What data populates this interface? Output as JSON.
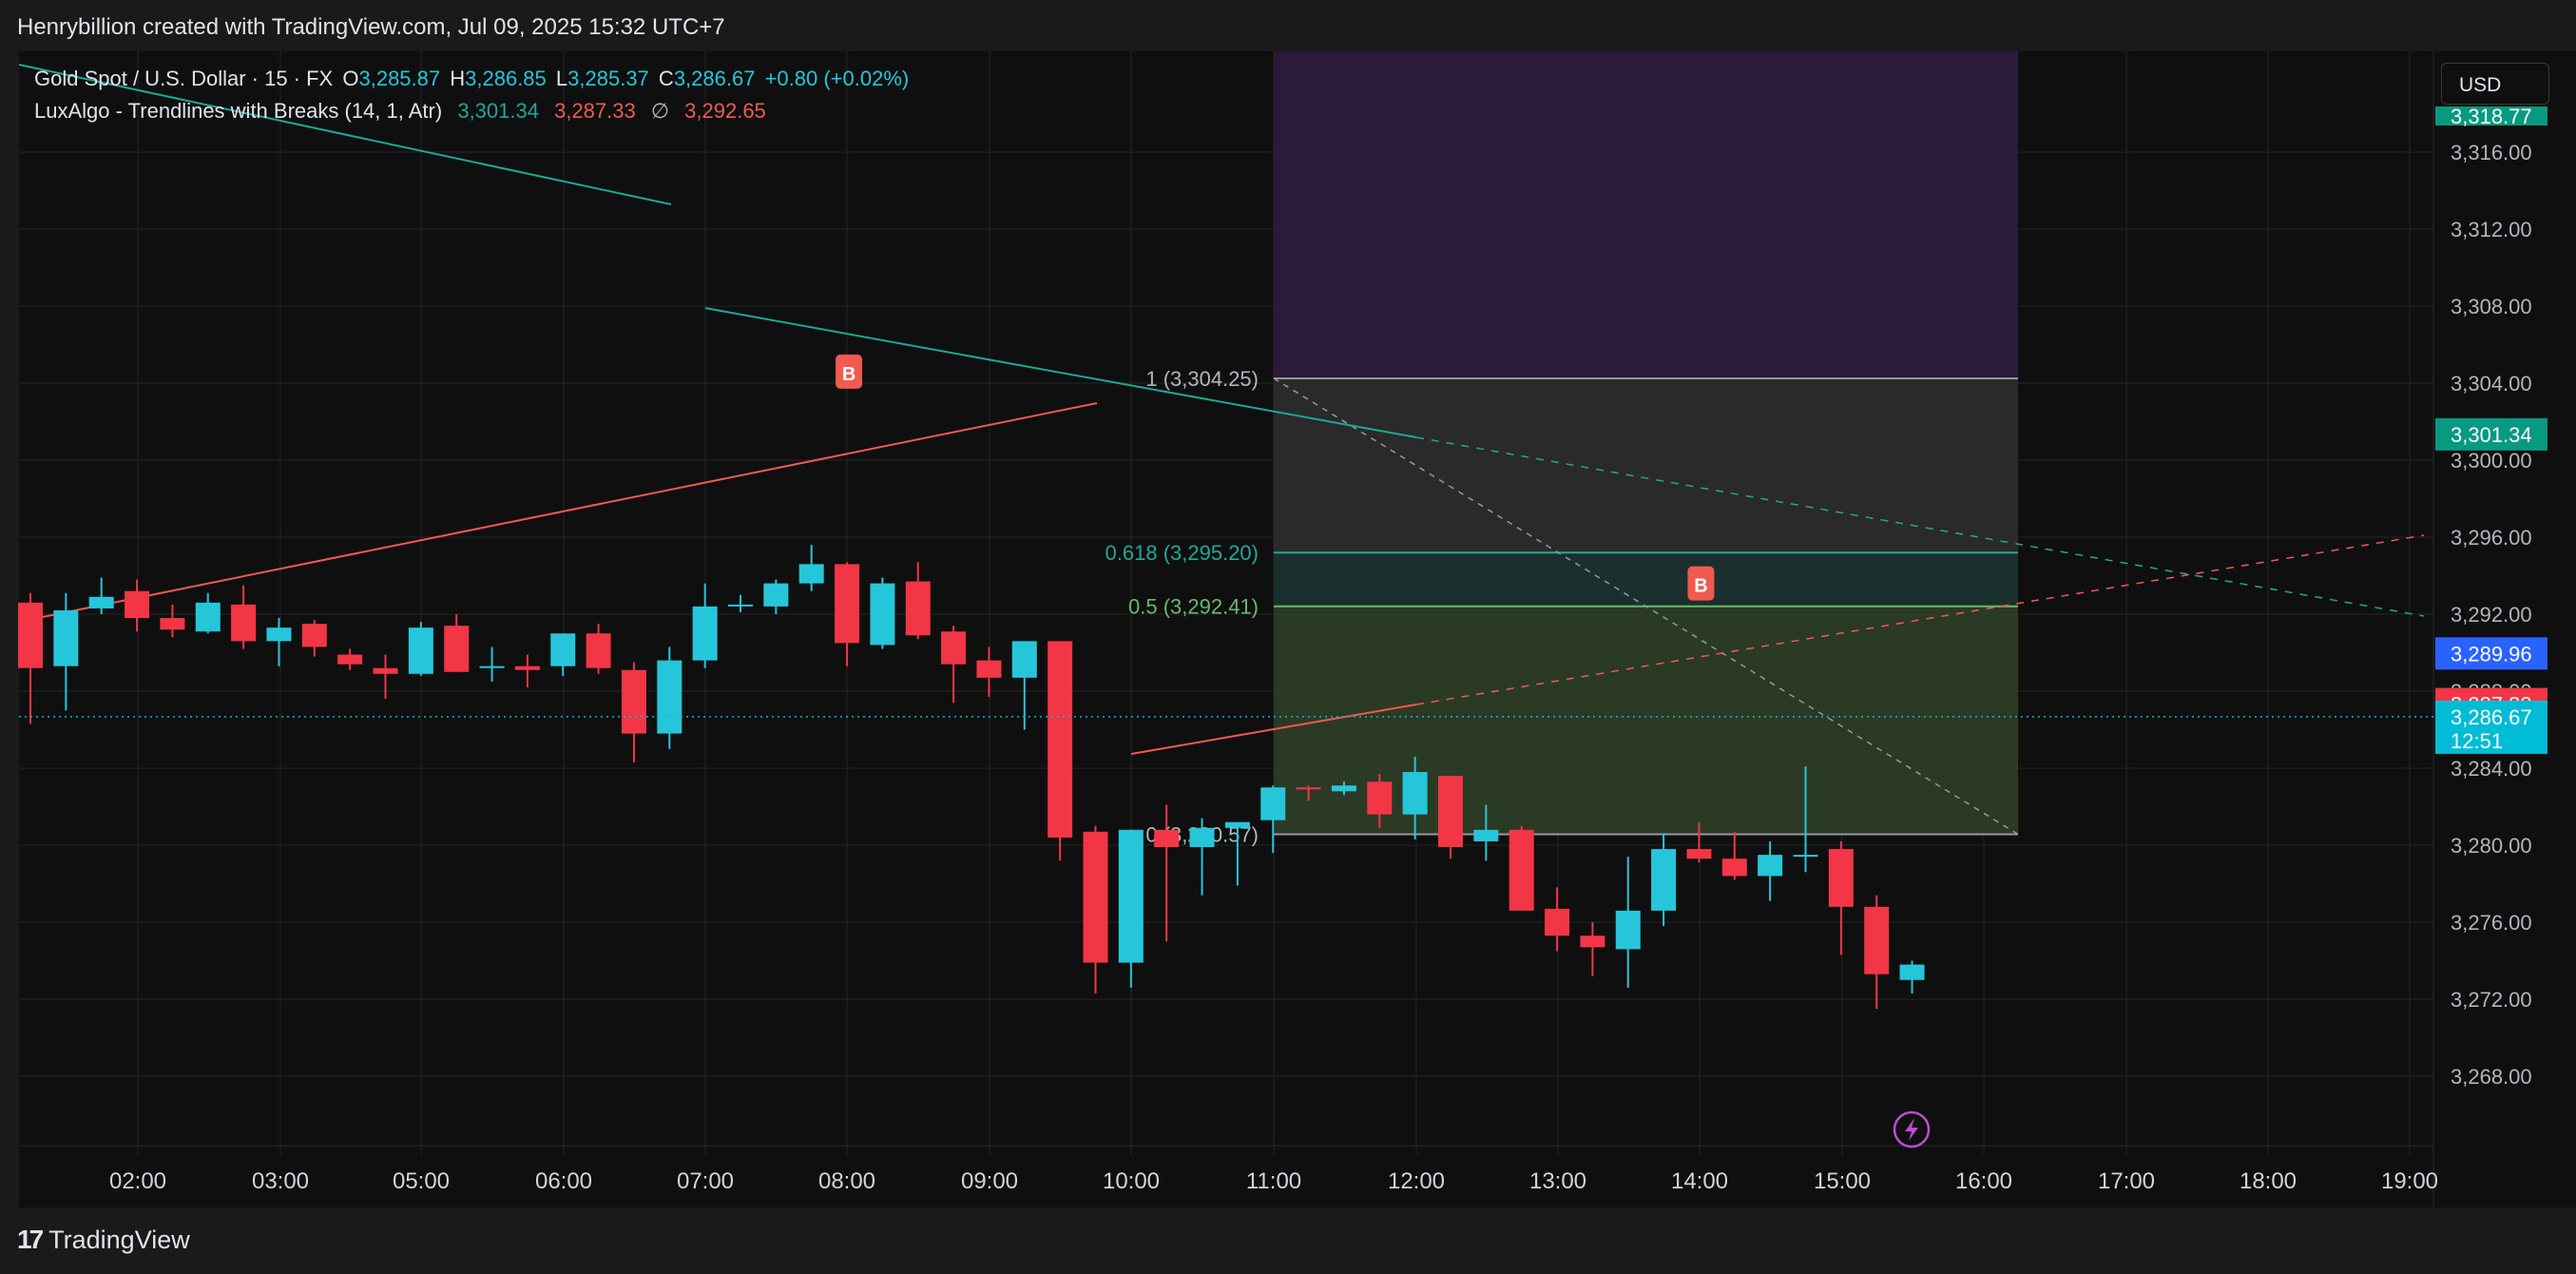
{
  "header": {
    "attribution": "Henrybillion created with TradingView.com, Jul 09, 2025 15:32 UTC+7"
  },
  "footer": {
    "brand_logo": "17",
    "brand_name": "TradingView"
  },
  "symbol_legend": {
    "symbol": "Gold Spot / U.S. Dollar · 15 · FX",
    "open_label": "O",
    "open": "3,285.87",
    "high_label": "H",
    "high": "3,286.85",
    "low_label": "L",
    "low": "3,285.37",
    "close_label": "C",
    "close": "3,286.67",
    "change": "+0.80 (+0.02%)"
  },
  "indicator_legend": {
    "name": "LuxAlgo - Trendlines with Breaks (14, 1, Atr)",
    "v1": "3,301.34",
    "v2": "3,287.33",
    "symbol": "∅",
    "v3": "3,292.65"
  },
  "currency_button": "USD",
  "colors": {
    "up": "#26c6da",
    "down": "#f23645",
    "bg": "#0f0f0f",
    "grid": "#242424",
    "text": "#b2b5be",
    "fib_green": "#2b3a24",
    "fib_gray": "#3a3a3a",
    "fib_purple": "#2c1a3a",
    "teal_line": "#1fa896",
    "red_line": "#f05a4f"
  },
  "chart_data": {
    "type": "candlestick",
    "price_axis": {
      "range": [
        3264.5,
        3322
      ],
      "ticks": [
        "3,316.00",
        "3,312.00",
        "3,308.00",
        "3,304.00",
        "3,300.00",
        "3,296.00",
        "3,292.00",
        "3,288.00",
        "3,284.00",
        "3,280.00",
        "3,276.00",
        "3,272.00",
        "3,268.00"
      ],
      "partial_top_label": "3,318.77"
    },
    "time_axis": {
      "ticks": [
        {
          "label": "02:00",
          "hour": 2
        },
        {
          "label": "03:00",
          "hour": 3
        },
        {
          "label": "05:00",
          "hour": 5
        },
        {
          "label": "06:00",
          "hour": 6
        },
        {
          "label": "07:00",
          "hour": 7
        },
        {
          "label": "08:00",
          "hour": 8
        },
        {
          "label": "09:00",
          "hour": 9
        },
        {
          "label": "10:00",
          "hour": 10
        },
        {
          "label": "11:00",
          "hour": 11
        },
        {
          "label": "12:00",
          "hour": 12
        },
        {
          "label": "13:00",
          "hour": 13
        },
        {
          "label": "14:00",
          "hour": 14
        },
        {
          "label": "15:00",
          "hour": 15
        },
        {
          "label": "16:00",
          "hour": 16
        },
        {
          "label": "17:00",
          "hour": 17
        },
        {
          "label": "18:00",
          "hour": 18
        },
        {
          "label": "19:00",
          "hour": 19
        }
      ]
    },
    "candles": [
      {
        "t": 1.25,
        "o": 3292.6,
        "h": 3293.1,
        "l": 3286.3,
        "c": 3289.2
      },
      {
        "t": 1.5,
        "o": 3289.3,
        "h": 3293.1,
        "l": 3287.0,
        "c": 3292.2
      },
      {
        "t": 1.75,
        "o": 3292.3,
        "h": 3293.9,
        "l": 3292.0,
        "c": 3292.9
      },
      {
        "t": 2.0,
        "o": 3293.2,
        "h": 3293.8,
        "l": 3291.1,
        "c": 3291.8
      },
      {
        "t": 2.25,
        "o": 3291.8,
        "h": 3292.5,
        "l": 3290.8,
        "c": 3291.2
      },
      {
        "t": 2.5,
        "o": 3291.1,
        "h": 3293.1,
        "l": 3291.0,
        "c": 3292.6
      },
      {
        "t": 2.75,
        "o": 3292.5,
        "h": 3293.5,
        "l": 3290.2,
        "c": 3290.6
      },
      {
        "t": 3.0,
        "o": 3290.6,
        "h": 3291.8,
        "l": 3289.3,
        "c": 3291.3
      },
      {
        "t": 3.25,
        "o": 3291.5,
        "h": 3291.7,
        "l": 3289.8,
        "c": 3290.3
      },
      {
        "t": 3.5,
        "o": 3289.9,
        "h": 3290.2,
        "l": 3289.1,
        "c": 3289.4
      },
      {
        "t": 3.75,
        "o": 3289.2,
        "h": 3289.9,
        "l": 3287.6,
        "c": 3288.9
      },
      {
        "t": 4.0,
        "o": 3288.9,
        "h": 3291.6,
        "l": 3288.8,
        "c": 3291.3
      },
      {
        "t": 4.25,
        "o": 3291.4,
        "h": 3292.0,
        "l": 3289.0,
        "c": 3289.0
      },
      {
        "t": 4.5,
        "o": 3289.3,
        "h": 3290.3,
        "l": 3288.5,
        "c": 3289.3
      },
      {
        "t": 4.75,
        "o": 3289.3,
        "h": 3289.9,
        "l": 3288.2,
        "c": 3289.1
      },
      {
        "t": 5.0,
        "o": 3289.3,
        "h": 3291.0,
        "l": 3288.8,
        "c": 3291.0
      },
      {
        "t": 5.25,
        "o": 3291.0,
        "h": 3291.5,
        "l": 3288.9,
        "c": 3289.2
      },
      {
        "t": 5.5,
        "o": 3289.1,
        "h": 3289.5,
        "l": 3284.3,
        "c": 3285.8
      },
      {
        "t": 5.75,
        "o": 3285.8,
        "h": 3290.3,
        "l": 3285.0,
        "c": 3289.6
      },
      {
        "t": 6.0,
        "o": 3289.6,
        "h": 3293.6,
        "l": 3289.2,
        "c": 3292.4
      },
      {
        "t": 6.25,
        "o": 3292.5,
        "h": 3293.0,
        "l": 3292.1,
        "c": 3292.5
      },
      {
        "t": 6.5,
        "o": 3292.4,
        "h": 3293.8,
        "l": 3292.0,
        "c": 3293.6
      },
      {
        "t": 6.75,
        "o": 3293.6,
        "h": 3295.6,
        "l": 3293.2,
        "c": 3294.6
      },
      {
        "t": 7.0,
        "o": 3294.6,
        "h": 3294.7,
        "l": 3289.3,
        "c": 3290.5
      },
      {
        "t": 7.25,
        "o": 3290.4,
        "h": 3293.9,
        "l": 3290.2,
        "c": 3293.6
      },
      {
        "t": 7.5,
        "o": 3293.7,
        "h": 3294.7,
        "l": 3290.7,
        "c": 3290.9
      },
      {
        "t": 7.75,
        "o": 3291.1,
        "h": 3291.4,
        "l": 3287.4,
        "c": 3289.4
      },
      {
        "t": 8.0,
        "o": 3289.6,
        "h": 3290.3,
        "l": 3287.7,
        "c": 3288.7
      },
      {
        "t": 8.25,
        "o": 3288.7,
        "h": 3290.6,
        "l": 3286.0,
        "c": 3290.6
      },
      {
        "t": 8.5,
        "o": 3290.6,
        "h": 3290.6,
        "l": 3279.2,
        "c": 3280.4
      },
      {
        "t": 8.75,
        "o": 3280.7,
        "h": 3281.0,
        "l": 3272.3,
        "c": 3273.9
      },
      {
        "t": 9.0,
        "o": 3273.9,
        "h": 3280.8,
        "l": 3272.6,
        "c": 3280.8
      },
      {
        "t": 9.25,
        "o": 3280.8,
        "h": 3282.1,
        "l": 3275.0,
        "c": 3279.9
      },
      {
        "t": 9.5,
        "o": 3279.9,
        "h": 3281.4,
        "l": 3277.4,
        "c": 3280.9
      },
      {
        "t": 9.75,
        "o": 3280.9,
        "h": 3281.2,
        "l": 3277.9,
        "c": 3281.2
      },
      {
        "t": 10.0,
        "o": 3281.3,
        "h": 3283.1,
        "l": 3279.6,
        "c": 3283.0
      },
      {
        "t": 10.25,
        "o": 3283.0,
        "h": 3283.1,
        "l": 3282.3,
        "c": 3282.9
      },
      {
        "t": 10.5,
        "o": 3282.8,
        "h": 3283.3,
        "l": 3282.6,
        "c": 3283.1
      },
      {
        "t": 10.75,
        "o": 3283.3,
        "h": 3283.7,
        "l": 3280.9,
        "c": 3281.6
      },
      {
        "t": 11.0,
        "o": 3281.6,
        "h": 3284.6,
        "l": 3280.3,
        "c": 3283.8
      },
      {
        "t": 11.25,
        "o": 3283.6,
        "h": 3283.6,
        "l": 3279.3,
        "c": 3279.9
      },
      {
        "t": 11.5,
        "o": 3280.2,
        "h": 3282.1,
        "l": 3279.2,
        "c": 3280.8
      },
      {
        "t": 11.75,
        "o": 3280.8,
        "h": 3281.0,
        "l": 3276.6,
        "c": 3276.6
      },
      {
        "t": 12.0,
        "o": 3276.7,
        "h": 3277.8,
        "l": 3274.5,
        "c": 3275.3
      },
      {
        "t": 12.25,
        "o": 3275.3,
        "h": 3276.0,
        "l": 3273.2,
        "c": 3274.7
      },
      {
        "t": 12.5,
        "o": 3274.6,
        "h": 3279.4,
        "l": 3272.6,
        "c": 3276.6
      },
      {
        "t": 12.75,
        "o": 3276.6,
        "h": 3280.6,
        "l": 3275.8,
        "c": 3279.8
      },
      {
        "t": 13.0,
        "o": 3279.8,
        "h": 3281.2,
        "l": 3279.1,
        "c": 3279.3
      },
      {
        "t": 13.25,
        "o": 3279.3,
        "h": 3280.7,
        "l": 3278.2,
        "c": 3278.4
      },
      {
        "t": 13.5,
        "o": 3278.4,
        "h": 3280.2,
        "l": 3277.1,
        "c": 3279.5
      },
      {
        "t": 13.75,
        "o": 3279.5,
        "h": 3284.1,
        "l": 3278.6,
        "c": 3279.5
      },
      {
        "t": 14.0,
        "o": 3279.8,
        "h": 3280.2,
        "l": 3274.3,
        "c": 3276.8
      },
      {
        "t": 14.25,
        "o": 3276.8,
        "h": 3277.4,
        "l": 3271.5,
        "c": 3273.3
      },
      {
        "t": 14.5,
        "o": 3273.0,
        "h": 3274.0,
        "l": 3272.3,
        "c": 3273.8
      }
    ],
    "fib_levels": [
      {
        "label": "1 (3,304.25)",
        "value": 3304.25
      },
      {
        "label": "0.618 (3,295.20)",
        "value": 3295.2
      },
      {
        "label": "0.5 (3,292.41)",
        "value": 3292.41
      },
      {
        "label": "0 (3,280.57)",
        "value": 3280.57
      }
    ],
    "break_labels": [
      {
        "text": "B",
        "t": 7.0,
        "value": 3304.5
      },
      {
        "text": "B",
        "t": 13.0,
        "value": 3293.5
      }
    ],
    "price_labels": [
      {
        "text": "3,301.34",
        "value": 3301.34,
        "color": "#089981"
      },
      {
        "text": "3,289.96",
        "value": 3289.96,
        "color": "#2962ff"
      },
      {
        "text": "3,287.33",
        "value": 3287.33,
        "color": "#f23645"
      },
      {
        "text": "3,286.67",
        "value": 3286.67,
        "color": "#00bcd4",
        "sub": "12:51"
      }
    ]
  }
}
